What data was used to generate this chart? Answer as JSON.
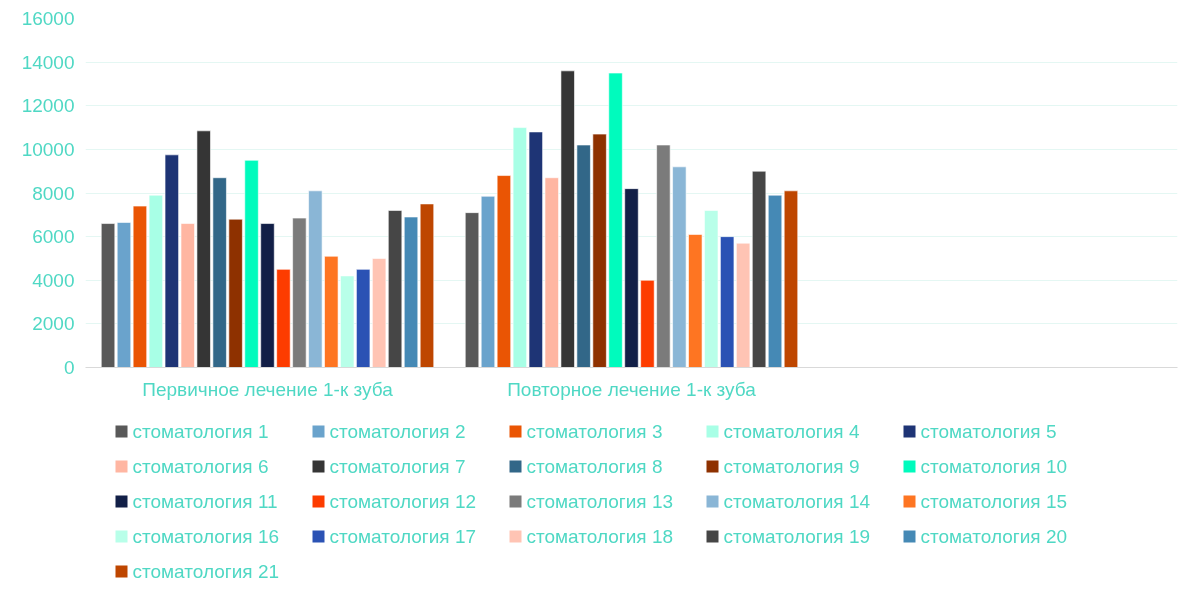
{
  "chart_data": {
    "type": "bar",
    "categories": [
      "Первичное лечение 1-к зуба",
      "Повторное лечение 1-к зуба",
      null
    ],
    "ylim": [
      0,
      16000
    ],
    "yticks": [
      0,
      2000,
      4000,
      6000,
      8000,
      10000,
      12000,
      14000,
      16000
    ],
    "grid": "y",
    "legend": "bottom",
    "series": [
      {
        "name": "стоматология 1",
        "color": "#595959",
        "values": [
          6600,
          7100,
          null
        ]
      },
      {
        "name": "стоматология 2",
        "color": "#6aa3cc",
        "values": [
          6650,
          7850,
          null
        ]
      },
      {
        "name": "стоматология 3",
        "color": "#ea5504",
        "values": [
          7400,
          8800,
          null
        ]
      },
      {
        "name": "стоматология 4",
        "color": "#a8ffe6",
        "values": [
          7900,
          11000,
          null
        ]
      },
      {
        "name": "стоматология 5",
        "color": "#1e3475",
        "values": [
          9750,
          10800,
          null
        ]
      },
      {
        "name": "стоматология 6",
        "color": "#ffb6a2",
        "values": [
          6600,
          8700,
          null
        ]
      },
      {
        "name": "стоматология 7",
        "color": "#353535",
        "values": [
          10850,
          13600,
          null
        ]
      },
      {
        "name": "стоматология 8",
        "color": "#326788",
        "values": [
          8700,
          10200,
          null
        ]
      },
      {
        "name": "стоматология 9",
        "color": "#8e3100",
        "values": [
          6800,
          10700,
          null
        ]
      },
      {
        "name": "стоматология 10",
        "color": "#00fbbd",
        "values": [
          9500,
          13500,
          null
        ]
      },
      {
        "name": "стоматология 11",
        "color": "#121f47",
        "values": [
          6600,
          8200,
          null
        ]
      },
      {
        "name": "стоматология 12",
        "color": "#fd3c00",
        "values": [
          4500,
          4000,
          null
        ]
      },
      {
        "name": "стоматология 13",
        "color": "#7b7b7b",
        "values": [
          6850,
          10200,
          null
        ]
      },
      {
        "name": "стоматология 14",
        "color": "#8ab6d6",
        "values": [
          8100,
          9200,
          null
        ]
      },
      {
        "name": "стоматология 15",
        "color": "#fe7522",
        "values": [
          5100,
          6100,
          null
        ]
      },
      {
        "name": "стоматология 16",
        "color": "#b8ffe9",
        "values": [
          4200,
          7200,
          null
        ]
      },
      {
        "name": "стоматология 17",
        "color": "#2b52b4",
        "values": [
          4500,
          6000,
          null
        ]
      },
      {
        "name": "стоматология 18",
        "color": "#ffc4b4",
        "values": [
          5000,
          5700,
          null
        ]
      },
      {
        "name": "стоматология 19",
        "color": "#464646",
        "values": [
          7200,
          9000,
          null
        ]
      },
      {
        "name": "стоматология 20",
        "color": "#4589b5",
        "values": [
          6900,
          7900,
          null
        ]
      },
      {
        "name": "стоматология 21",
        "color": "#be4600",
        "values": [
          7500,
          8100,
          null
        ]
      }
    ]
  }
}
